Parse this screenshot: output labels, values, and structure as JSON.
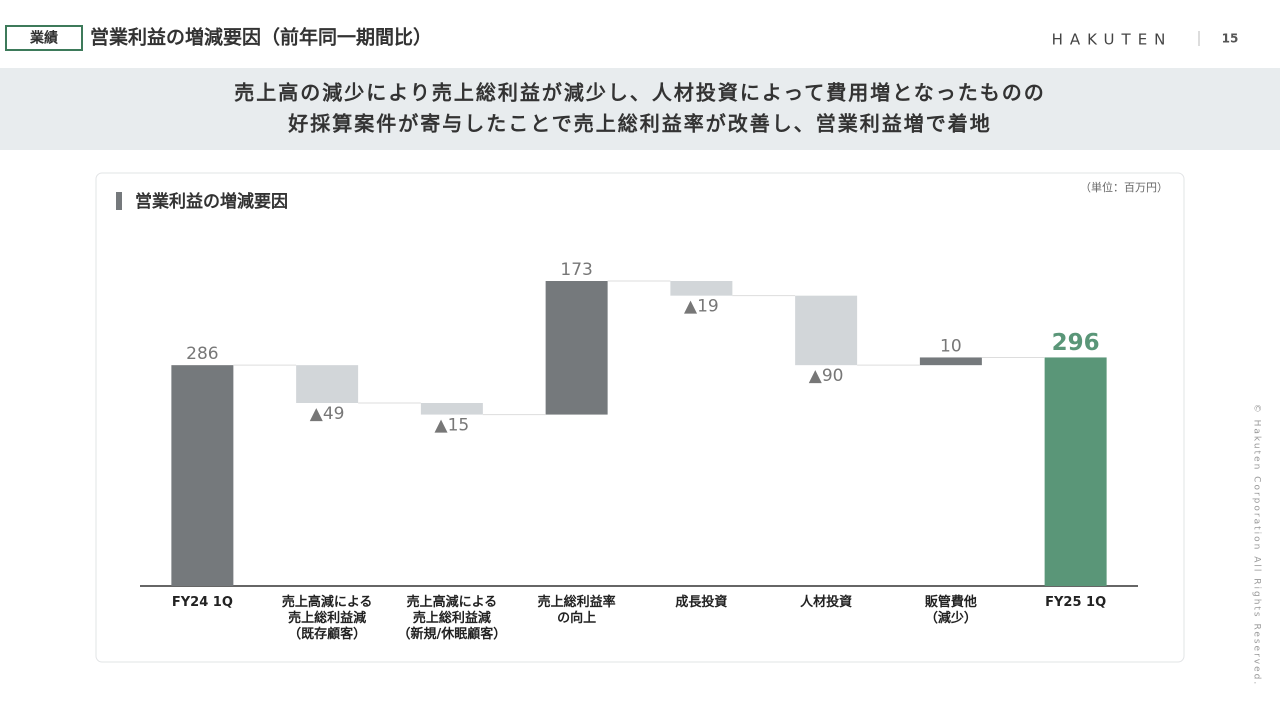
{
  "header": {
    "tag": "業績",
    "title": "営業利益の増減要因（前年同一期間比）",
    "logo": "HAKUTEN",
    "page": "15"
  },
  "banner": {
    "lines": [
      "売上高の減少により売上総利益が減少し、人材投資によって費用増となったものの",
      "好採算案件が寄与したことで売上総利益率が改善し、営業利益増で着地"
    ]
  },
  "copyright": "© Hakuten Corporation All Rights Reserved.",
  "chart_data": {
    "type": "waterfall",
    "title": "営業利益の増減要因",
    "unit": "（単位：百万円）",
    "categories": [
      "FY24 1Q",
      "売上高減による\n売上総利益減\n（既存顧客）",
      "売上高減による\n売上総利益減\n（新規/休眠顧客）",
      "売上総利益率\nの向上",
      "成長投資",
      "人材投資",
      "販管費他\n（減少）",
      "FY25 1Q"
    ],
    "values": [
      286,
      -49,
      -15,
      173,
      -19,
      -90,
      10,
      296
    ],
    "value_labels": [
      "286",
      "▲49",
      "▲15",
      "173",
      "▲19",
      "▲90",
      "10",
      "296"
    ],
    "totals": [
      true,
      false,
      false,
      false,
      false,
      false,
      false,
      true
    ],
    "colors": [
      "#75797c",
      "#d2d6d9",
      "#d2d6d9",
      "#75797c",
      "#d2d6d9",
      "#d2d6d9",
      "#75797c",
      "#5a9678"
    ]
  }
}
